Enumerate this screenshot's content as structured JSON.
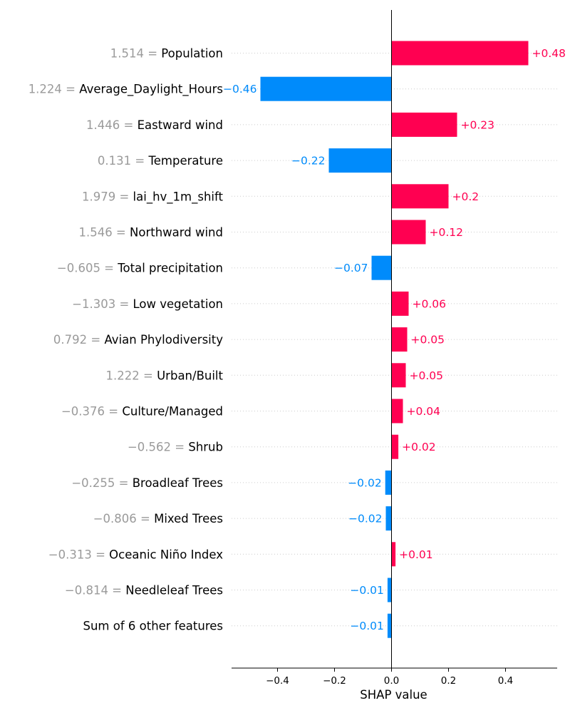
{
  "chart_data": {
    "type": "bar",
    "orientation": "horizontal",
    "xlabel": "SHAP value",
    "xlim": [
      -0.56,
      0.58
    ],
    "xticks": [
      -0.4,
      -0.2,
      0.0,
      0.2,
      0.4
    ],
    "xtick_labels": [
      "−0.4",
      "−0.2",
      "0.0",
      "0.2",
      "0.4"
    ],
    "grid": "horizontal dotted",
    "colors": {
      "positive": "#ff0051",
      "negative": "#008bfb",
      "feature_value": "#9a9a9a"
    },
    "features": [
      {
        "value_text": "1.514 = ",
        "name": "Population",
        "shap": 0.48,
        "label": "+0.48"
      },
      {
        "value_text": "1.224 = ",
        "name": "Average_Daylight_Hours",
        "shap": -0.46,
        "label": "−0.46"
      },
      {
        "value_text": "1.446 = ",
        "name": "Eastward wind",
        "shap": 0.23,
        "label": "+0.23"
      },
      {
        "value_text": "0.131 = ",
        "name": "Temperature",
        "shap": -0.22,
        "label": "−0.22"
      },
      {
        "value_text": "1.979 = ",
        "name": "lai_hv_1m_shift",
        "shap": 0.2,
        "label": "+0.2"
      },
      {
        "value_text": "1.546 = ",
        "name": "Northward wind",
        "shap": 0.12,
        "label": "+0.12"
      },
      {
        "value_text": "−0.605 = ",
        "name": "Total precipitation",
        "shap": -0.07,
        "label": "−0.07"
      },
      {
        "value_text": "−1.303 = ",
        "name": "Low vegetation",
        "shap": 0.06,
        "label": "+0.06"
      },
      {
        "value_text": "0.792 = ",
        "name": "Avian Phylodiversity",
        "shap": 0.055,
        "label": "+0.05"
      },
      {
        "value_text": "1.222 = ",
        "name": "Urban/Built",
        "shap": 0.05,
        "label": "+0.05"
      },
      {
        "value_text": "−0.376 = ",
        "name": "Culture/Managed",
        "shap": 0.04,
        "label": "+0.04"
      },
      {
        "value_text": "−0.562 = ",
        "name": "Shrub",
        "shap": 0.024,
        "label": "+0.02"
      },
      {
        "value_text": "−0.255 = ",
        "name": "Broadleaf Trees",
        "shap": -0.022,
        "label": "−0.02"
      },
      {
        "value_text": "−0.806 = ",
        "name": "Mixed Trees",
        "shap": -0.02,
        "label": "−0.02"
      },
      {
        "value_text": "−0.313 = ",
        "name": "Oceanic Niño Index",
        "shap": 0.014,
        "label": "+0.01"
      },
      {
        "value_text": "−0.814 = ",
        "name": "Needleleaf Trees",
        "shap": -0.014,
        "label": "−0.01"
      },
      {
        "value_text": "",
        "name": "Sum of 6 other features",
        "shap": -0.014,
        "label": "−0.01"
      }
    ]
  }
}
